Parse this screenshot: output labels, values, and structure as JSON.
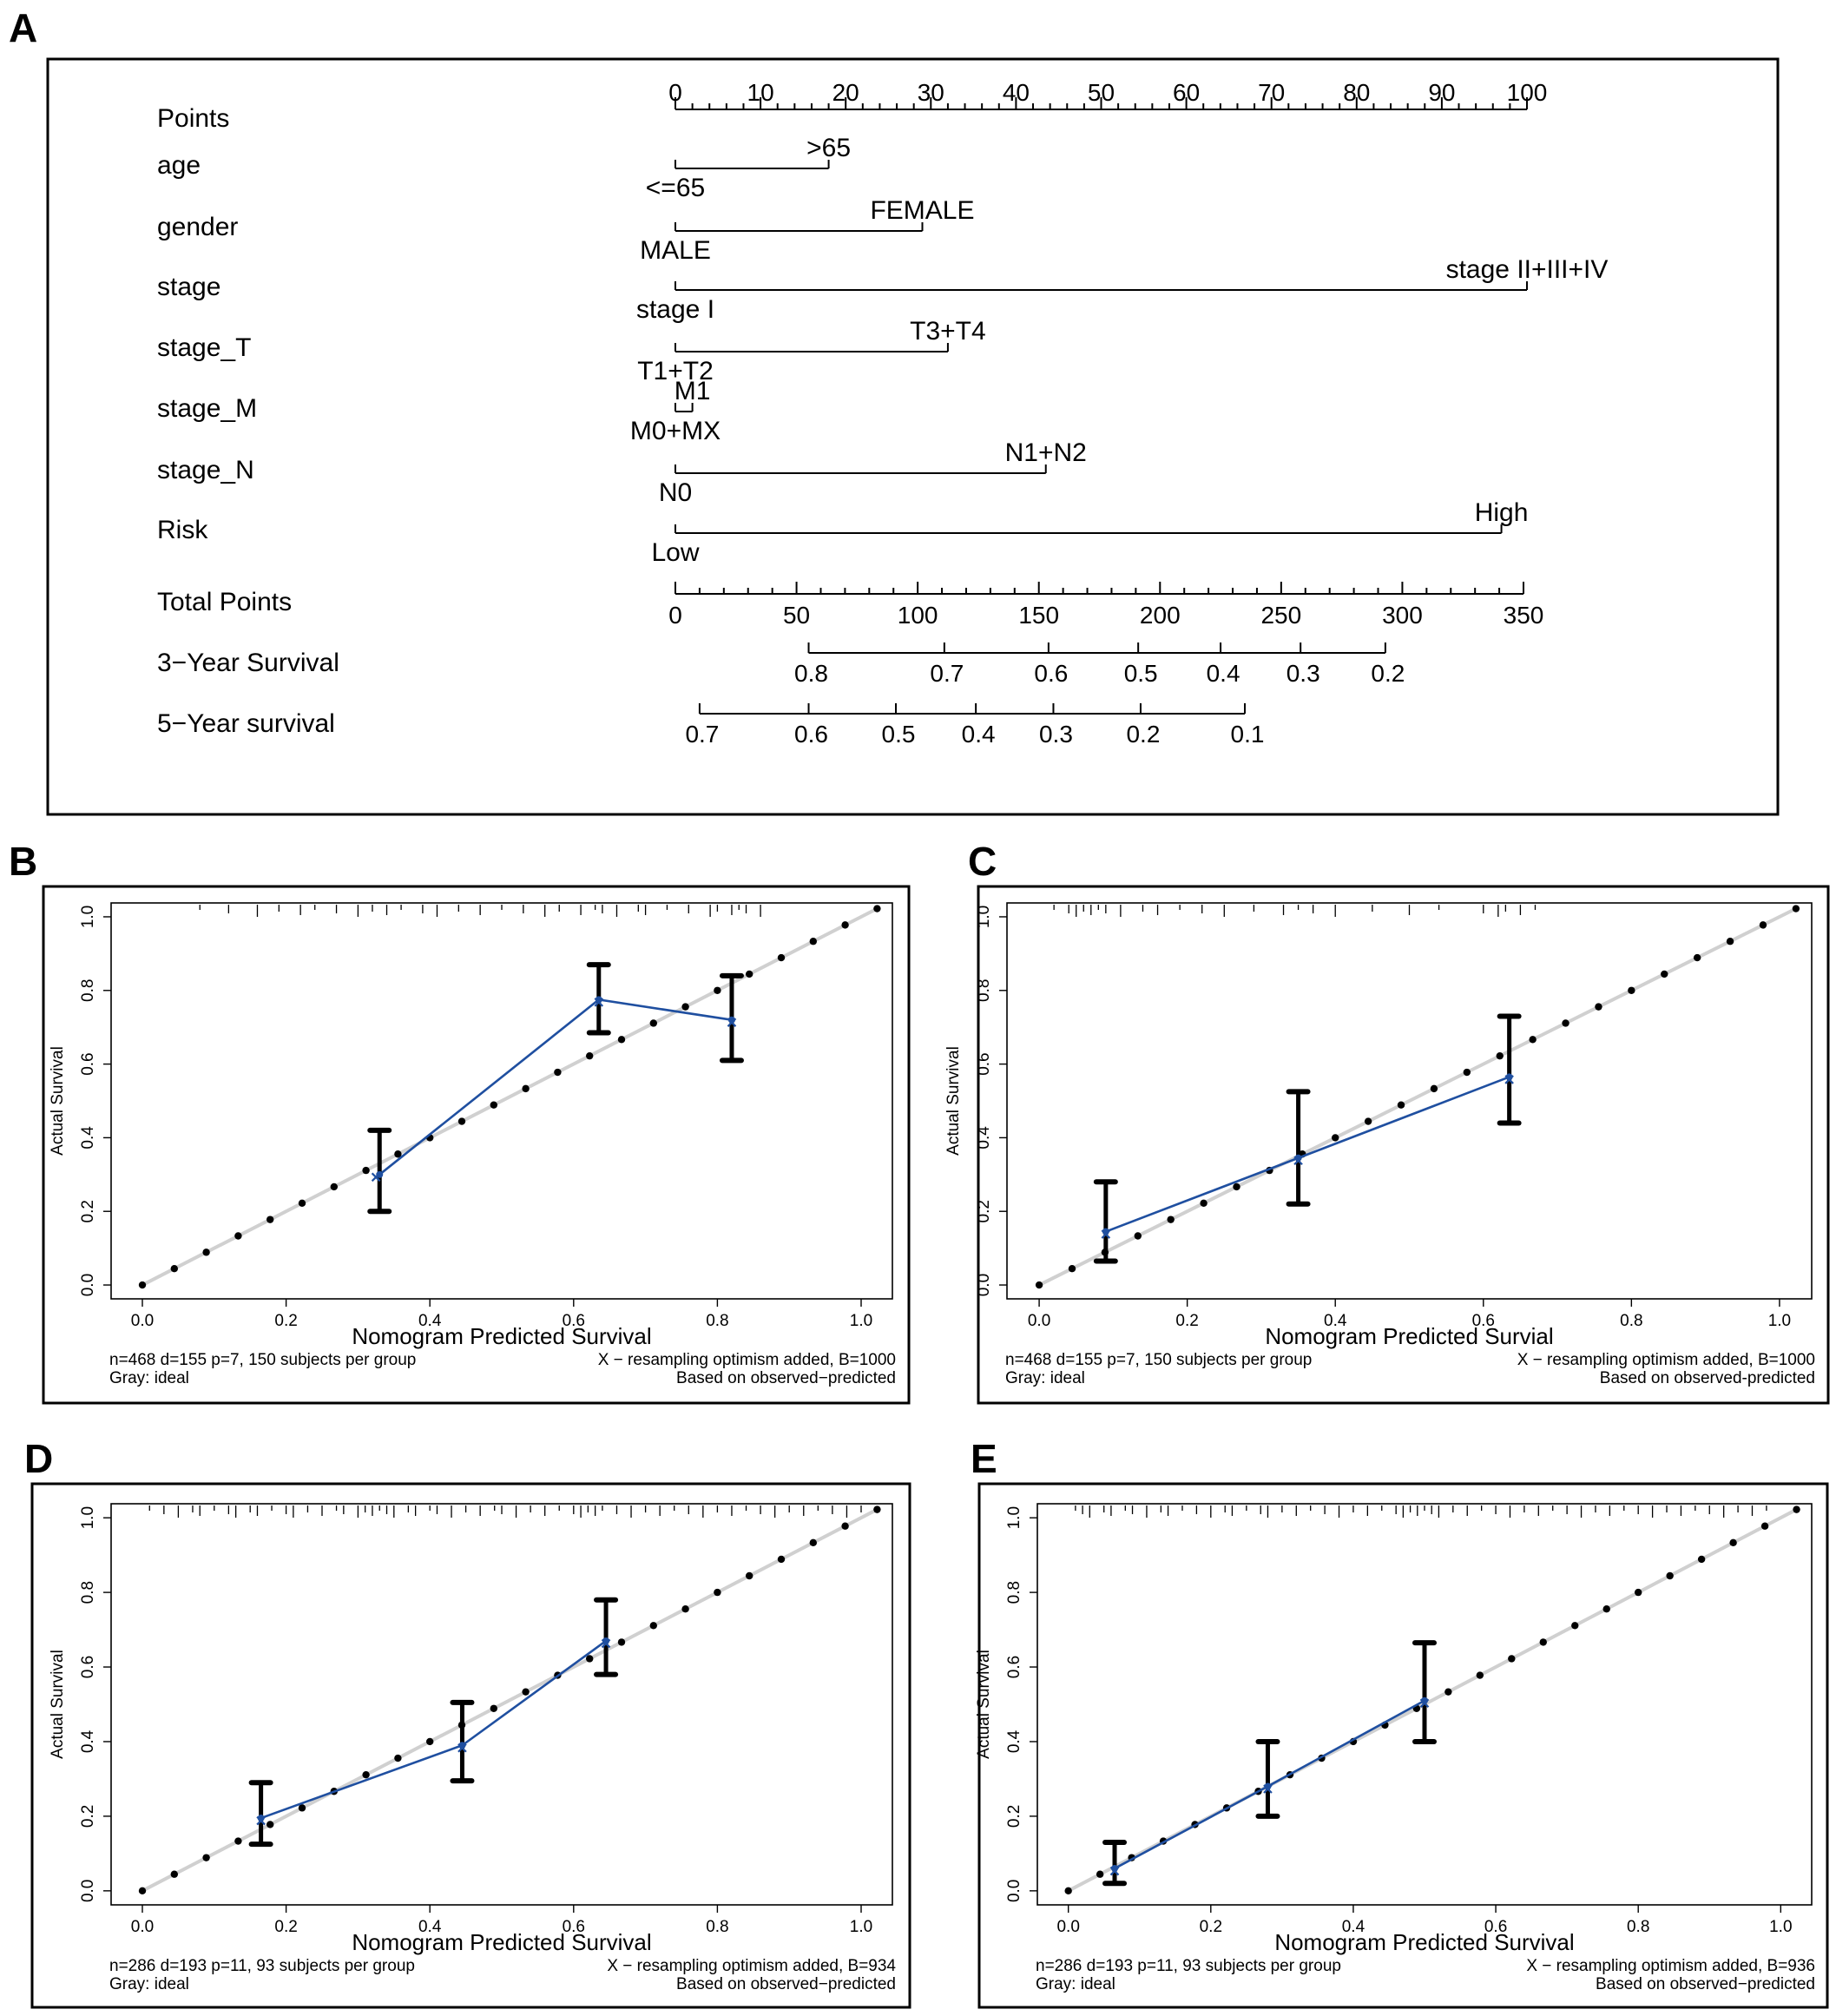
{
  "chart_data": [
    {
      "type": "nomogram",
      "panel": "A",
      "points_axis": {
        "label": "Points",
        "ticks": [
          0,
          10,
          20,
          30,
          40,
          50,
          60,
          70,
          80,
          90,
          100
        ]
      },
      "predictors": [
        {
          "name": "age",
          "levels": [
            {
              "label": "<=65",
              "points": 0
            },
            {
              "label": ">65",
              "points": 18
            }
          ]
        },
        {
          "name": "gender",
          "levels": [
            {
              "label": "MALE",
              "points": 0
            },
            {
              "label": "FEMALE",
              "points": 29
            }
          ]
        },
        {
          "name": "stage",
          "levels": [
            {
              "label": "stage I",
              "points": 0
            },
            {
              "label": "stage II+III+IV",
              "points": 100
            }
          ]
        },
        {
          "name": "stage_T",
          "levels": [
            {
              "label": "T1+T2",
              "points": 0
            },
            {
              "label": "T3+T4",
              "points": 32
            }
          ]
        },
        {
          "name": "stage_M",
          "levels": [
            {
              "label": "M0+MX",
              "points": 0
            },
            {
              "label": "M1",
              "points": 2
            }
          ]
        },
        {
          "name": "stage_N",
          "levels": [
            {
              "label": "N0",
              "points": 0
            },
            {
              "label": "N1+N2",
              "points": 43.5
            }
          ]
        },
        {
          "name": "Risk",
          "levels": [
            {
              "label": "Low",
              "points": 0
            },
            {
              "label": "High",
              "points": 97
            }
          ]
        }
      ],
      "total_points_axis": {
        "label": "Total Points",
        "ticks": [
          0,
          50,
          100,
          150,
          200,
          250,
          300,
          350
        ]
      },
      "survival_axes": [
        {
          "label": "3−Year Survival",
          "ticks": [
            {
              "label": "0.8",
              "total": 55
            },
            {
              "label": "0.7",
              "total": 111
            },
            {
              "label": "0.6",
              "total": 154
            },
            {
              "label": "0.5",
              "total": 191
            },
            {
              "label": "0.4",
              "total": 225
            },
            {
              "label": "0.3",
              "total": 258
            },
            {
              "label": "0.2",
              "total": 293
            }
          ]
        },
        {
          "label": "5−Year survival",
          "ticks": [
            {
              "label": "0.7",
              "total": 10
            },
            {
              "label": "0.6",
              "total": 55
            },
            {
              "label": "0.5",
              "total": 91
            },
            {
              "label": "0.4",
              "total": 124
            },
            {
              "label": "0.3",
              "total": 156
            },
            {
              "label": "0.2",
              "total": 192
            },
            {
              "label": "0.1",
              "total": 235
            }
          ]
        }
      ]
    },
    {
      "type": "scatter",
      "panel": "B",
      "xlabel": "Nomogram Predicted Survival",
      "ylabel": "Actual Survival",
      "xlim": [
        0,
        1
      ],
      "ylim": [
        0,
        1
      ],
      "note_left": [
        "n=468 d=155 p=7, 150 subjects per group",
        "Gray: ideal"
      ],
      "note_right": [
        "X − resampling optimism added, B=1000",
        "Based on observed−predicted"
      ],
      "calibration": [
        {
          "x": 0.33,
          "y": 0.3,
          "lo": 0.2,
          "hi": 0.42
        },
        {
          "x": 0.635,
          "y": 0.775,
          "lo": 0.685,
          "hi": 0.87
        },
        {
          "x": 0.82,
          "y": 0.72,
          "lo": 0.61,
          "hi": 0.84
        }
      ],
      "optimism_x": [
        0.325,
        0.635,
        0.82
      ],
      "rug": [
        0.08,
        0.12,
        0.16,
        0.19,
        0.22,
        0.24,
        0.27,
        0.3,
        0.32,
        0.34,
        0.36,
        0.39,
        0.41,
        0.44,
        0.47,
        0.5,
        0.53,
        0.56,
        0.58,
        0.61,
        0.63,
        0.64,
        0.66,
        0.69,
        0.7,
        0.73,
        0.76,
        0.79,
        0.8,
        0.82,
        0.83,
        0.84,
        0.86
      ]
    },
    {
      "type": "scatter",
      "panel": "C",
      "xlabel": "Nomogram Predicted Survial",
      "ylabel": "Actual Survival",
      "xlim": [
        0,
        1
      ],
      "ylim": [
        0,
        1
      ],
      "note_left": [
        "n=468 d=155 p=7, 150 subjects per group",
        "Gray: ideal"
      ],
      "note_right": [
        "X − resampling optimism added, B=1000",
        "Based on observed-predicted"
      ],
      "calibration": [
        {
          "x": 0.09,
          "y": 0.145,
          "lo": 0.065,
          "hi": 0.28
        },
        {
          "x": 0.35,
          "y": 0.345,
          "lo": 0.22,
          "hi": 0.525
        },
        {
          "x": 0.635,
          "y": 0.565,
          "lo": 0.44,
          "hi": 0.73
        }
      ],
      "optimism_x": [
        0.09,
        0.35,
        0.635
      ],
      "rug": [
        0.02,
        0.04,
        0.05,
        0.06,
        0.07,
        0.08,
        0.09,
        0.11,
        0.14,
        0.16,
        0.19,
        0.22,
        0.25,
        0.29,
        0.33,
        0.35,
        0.37,
        0.4,
        0.45,
        0.5,
        0.54,
        0.6,
        0.62,
        0.63,
        0.65,
        0.67
      ]
    },
    {
      "type": "scatter",
      "panel": "D",
      "xlabel": "Nomogram Predicted Survival",
      "ylabel": "Actual Survival",
      "xlim": [
        0,
        1
      ],
      "ylim": [
        0,
        1
      ],
      "note_left": [
        "n=286 d=193 p=11, 93 subjects per group",
        "Gray: ideal"
      ],
      "note_right": [
        "X − resampling optimism added, B=934",
        "Based on observed−predicted"
      ],
      "calibration": [
        {
          "x": 0.165,
          "y": 0.195,
          "lo": 0.125,
          "hi": 0.29
        },
        {
          "x": 0.445,
          "y": 0.39,
          "lo": 0.295,
          "hi": 0.505
        },
        {
          "x": 0.645,
          "y": 0.67,
          "lo": 0.58,
          "hi": 0.78
        }
      ],
      "optimism_x": [
        0.165,
        0.445,
        0.645
      ],
      "rug": [
        0.01,
        0.03,
        0.05,
        0.07,
        0.08,
        0.1,
        0.12,
        0.13,
        0.15,
        0.16,
        0.18,
        0.2,
        0.21,
        0.23,
        0.25,
        0.27,
        0.28,
        0.3,
        0.31,
        0.32,
        0.33,
        0.34,
        0.35,
        0.37,
        0.38,
        0.4,
        0.41,
        0.43,
        0.45,
        0.47,
        0.49,
        0.5,
        0.52,
        0.54,
        0.56,
        0.58,
        0.6,
        0.61,
        0.62,
        0.63,
        0.64,
        0.66,
        0.68,
        0.7,
        0.72,
        0.74,
        0.76,
        0.78,
        0.8,
        0.82,
        0.84,
        0.86,
        0.88,
        0.9,
        0.92,
        0.94,
        0.96,
        0.98,
        1.0
      ]
    },
    {
      "type": "scatter",
      "panel": "E",
      "xlabel": "Nomogram Predicted Survival",
      "ylabel": "Actual Survival",
      "xlim": [
        0,
        1
      ],
      "ylim": [
        0,
        1
      ],
      "note_left": [
        "n=286 d=193 p=11, 93 subjects per group",
        "Gray: ideal"
      ],
      "note_right": [
        "X − resampling optimism added, B=936",
        "Based on observed−predicted"
      ],
      "calibration": [
        {
          "x": 0.065,
          "y": 0.06,
          "lo": 0.02,
          "hi": 0.13
        },
        {
          "x": 0.28,
          "y": 0.28,
          "lo": 0.2,
          "hi": 0.4
        },
        {
          "x": 0.5,
          "y": 0.51,
          "lo": 0.4,
          "hi": 0.665
        }
      ],
      "optimism_x": [
        0.065,
        0.28,
        0.5
      ],
      "rug": [
        0.01,
        0.02,
        0.03,
        0.05,
        0.06,
        0.08,
        0.09,
        0.11,
        0.13,
        0.14,
        0.16,
        0.18,
        0.2,
        0.22,
        0.23,
        0.25,
        0.27,
        0.28,
        0.3,
        0.32,
        0.34,
        0.36,
        0.38,
        0.4,
        0.42,
        0.44,
        0.46,
        0.47,
        0.48,
        0.49,
        0.5,
        0.51,
        0.52,
        0.54,
        0.56,
        0.58,
        0.6,
        0.62,
        0.64,
        0.66,
        0.68,
        0.7,
        0.72,
        0.74,
        0.76,
        0.78,
        0.8,
        0.82,
        0.84,
        0.86,
        0.88,
        0.9,
        0.92,
        0.94,
        0.96,
        0.98
      ]
    }
  ]
}
